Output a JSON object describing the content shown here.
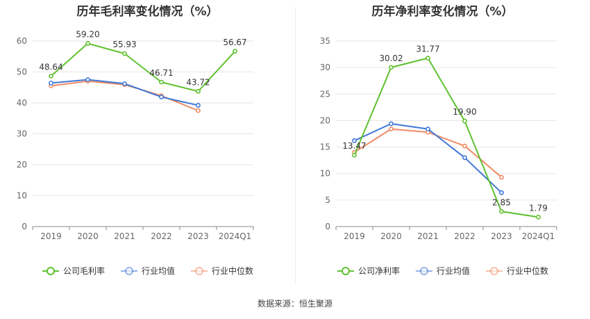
{
  "source_label": "数据来源：恒生聚源",
  "legend_colors": {
    "company": "#5ec12f",
    "avg": "#3f78d8",
    "median": "#f08a64"
  },
  "chart_data": [
    {
      "type": "line",
      "title": "历年毛利率变化情况（%）",
      "categories": [
        "2019",
        "2020",
        "2021",
        "2022",
        "2023",
        "2024Q1"
      ],
      "ylim": [
        0,
        60
      ],
      "yticks": [
        0,
        10,
        20,
        30,
        40,
        50,
        60
      ],
      "grid": true,
      "legend": "bottom",
      "series": [
        {
          "name": "公司毛利率",
          "color": "#5ec12f",
          "values": [
            48.64,
            59.2,
            55.93,
            46.71,
            43.72,
            56.67
          ],
          "labels": [
            "48.64",
            "59.20",
            "55.93",
            "46.71",
            "43.72",
            "56.67"
          ]
        },
        {
          "name": "行业均值",
          "color": "#3f78d8",
          "values": [
            46.4,
            47.5,
            46.2,
            41.9,
            39.2,
            null
          ]
        },
        {
          "name": "行业中位数",
          "color": "#f08a64",
          "values": [
            45.5,
            47.0,
            45.9,
            42.3,
            37.5,
            null
          ]
        }
      ]
    },
    {
      "type": "line",
      "title": "历年净利率变化情况（%）",
      "categories": [
        "2019",
        "2020",
        "2021",
        "2022",
        "2023",
        "2024Q1"
      ],
      "ylim": [
        0,
        35
      ],
      "yticks": [
        0,
        5,
        10,
        15,
        20,
        25,
        30,
        35
      ],
      "grid": true,
      "legend": "bottom",
      "series": [
        {
          "name": "公司净利率",
          "color": "#5ec12f",
          "values": [
            13.47,
            30.02,
            31.77,
            19.9,
            2.85,
            1.79
          ],
          "labels": [
            "13.47",
            "30.02",
            "31.77",
            "19.90",
            "2.85",
            "1.79"
          ]
        },
        {
          "name": "行业均值",
          "color": "#3f78d8",
          "values": [
            16.2,
            19.4,
            18.4,
            13.0,
            6.4,
            null
          ]
        },
        {
          "name": "行业中位数",
          "color": "#f08a64",
          "values": [
            14.0,
            18.4,
            17.8,
            15.2,
            9.3,
            null
          ]
        }
      ]
    }
  ]
}
